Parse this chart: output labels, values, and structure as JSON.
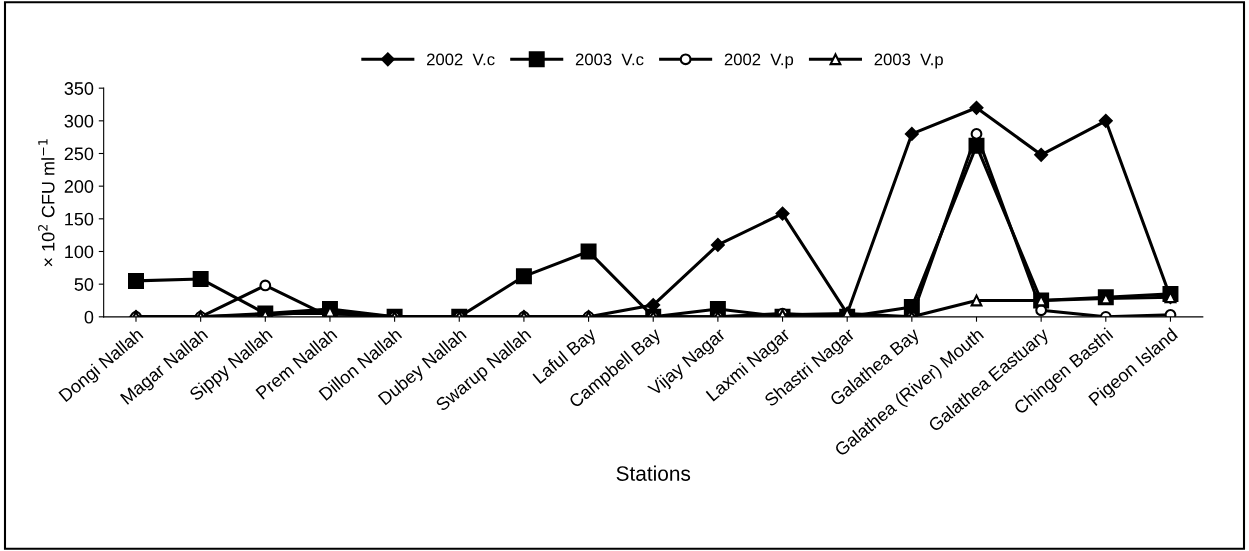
{
  "chart_data": {
    "type": "line",
    "xlabel": "Stations",
    "ylabel": "× 10$^{2}$ CFU ml$^{−1}$",
    "categories": [
      "Dongi Nallah",
      "Magar Nallah",
      "Sippy Nallah",
      "Prem Nallah",
      "Dillon Nallah",
      "Dubey Nallah",
      "Swarup Nallah",
      "Laful Bay",
      "Campbell Bay",
      "Vijay Nagar",
      "Laxmi Nagar",
      "Shastri Nagar",
      "Galathea Bay",
      "Galathea (River) Mouth",
      "Galathea Eastuary",
      "Chingen Basthi",
      "Pigeon Island"
    ],
    "series": [
      {
        "name": "2002  V.c",
        "color": "#000000",
        "marker": "diamond",
        "values": [
          0,
          0,
          5,
          5,
          0,
          0,
          0,
          0,
          18,
          110,
          158,
          5,
          280,
          320,
          248,
          300,
          30
        ]
      },
      {
        "name": "2003  V.c",
        "color": "#000000",
        "marker": "square",
        "values": [
          55,
          58,
          5,
          12,
          0,
          0,
          62,
          100,
          0,
          12,
          0,
          0,
          15,
          262,
          25,
          30,
          35
        ]
      },
      {
        "name": "2002  V.p",
        "color": "#000000",
        "marker": "circle",
        "values": [
          0,
          0,
          48,
          0,
          0,
          0,
          0,
          0,
          0,
          0,
          5,
          0,
          0,
          280,
          10,
          0,
          3
        ]
      },
      {
        "name": "2003  V.p",
        "color": "#000000",
        "marker": "triangle",
        "values": [
          0,
          0,
          3,
          8,
          0,
          0,
          0,
          0,
          0,
          0,
          3,
          5,
          0,
          25,
          25,
          28,
          30
        ]
      }
    ],
    "ylim": [
      0,
      350
    ],
    "yticks": [
      0,
      50,
      100,
      150,
      200,
      250,
      300,
      350
    ],
    "grid": false,
    "legend": "top",
    "line_style": "solid"
  }
}
